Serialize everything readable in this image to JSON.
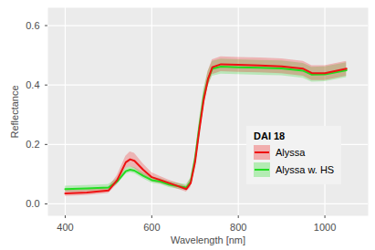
{
  "chart_data": {
    "type": "line",
    "legend_title": "DAI 18",
    "x_label": "Wavelength [nm]",
    "y_label": "Reflectance",
    "x": [
      400,
      450,
      500,
      520,
      540,
      550,
      560,
      580,
      600,
      620,
      640,
      660,
      680,
      690,
      700,
      710,
      720,
      730,
      740,
      760,
      800,
      850,
      900,
      950,
      970,
      1000,
      1050
    ],
    "series": [
      {
        "name": "Alyssa",
        "color": "#ee1111",
        "values": [
          0.035,
          0.038,
          0.045,
          0.08,
          0.14,
          0.15,
          0.145,
          0.115,
          0.09,
          0.08,
          0.07,
          0.06,
          0.05,
          0.07,
          0.14,
          0.25,
          0.35,
          0.42,
          0.46,
          0.47,
          0.468,
          0.466,
          0.463,
          0.455,
          0.44,
          0.44,
          0.455
        ],
        "lower": [
          0.025,
          0.028,
          0.035,
          0.065,
          0.12,
          0.125,
          0.12,
          0.095,
          0.075,
          0.068,
          0.06,
          0.05,
          0.04,
          0.055,
          0.12,
          0.225,
          0.325,
          0.395,
          0.435,
          0.445,
          0.443,
          0.441,
          0.438,
          0.43,
          0.415,
          0.415,
          0.43
        ],
        "upper": [
          0.045,
          0.048,
          0.055,
          0.095,
          0.16,
          0.175,
          0.17,
          0.135,
          0.105,
          0.092,
          0.08,
          0.07,
          0.06,
          0.085,
          0.16,
          0.275,
          0.375,
          0.445,
          0.485,
          0.495,
          0.493,
          0.491,
          0.488,
          0.48,
          0.465,
          0.465,
          0.48
        ]
      },
      {
        "name": "Alyssa w. HS",
        "color": "#22dd22",
        "values": [
          0.05,
          0.052,
          0.055,
          0.075,
          0.11,
          0.115,
          0.112,
          0.095,
          0.08,
          0.075,
          0.065,
          0.06,
          0.055,
          0.075,
          0.15,
          0.26,
          0.36,
          0.42,
          0.455,
          0.462,
          0.46,
          0.458,
          0.456,
          0.448,
          0.435,
          0.436,
          0.45
        ],
        "lower": [
          0.04,
          0.042,
          0.045,
          0.065,
          0.1,
          0.105,
          0.102,
          0.085,
          0.07,
          0.065,
          0.055,
          0.05,
          0.045,
          0.063,
          0.135,
          0.24,
          0.335,
          0.395,
          0.43,
          0.437,
          0.435,
          0.433,
          0.431,
          0.423,
          0.41,
          0.411,
          0.425
        ],
        "upper": [
          0.06,
          0.062,
          0.065,
          0.085,
          0.12,
          0.125,
          0.122,
          0.105,
          0.09,
          0.085,
          0.075,
          0.07,
          0.065,
          0.087,
          0.165,
          0.28,
          0.385,
          0.445,
          0.48,
          0.487,
          0.485,
          0.483,
          0.481,
          0.473,
          0.46,
          0.461,
          0.475
        ]
      }
    ],
    "xlim": [
      360,
      1100
    ],
    "xticks": [
      400,
      600,
      800,
      1000
    ],
    "ylim": [
      -0.04,
      0.66
    ],
    "yticks": [
      {
        "value": 0,
        "label": "0.0"
      },
      0.2,
      0.4,
      0.6
    ],
    "grid": true,
    "legend": "bottom-right"
  }
}
